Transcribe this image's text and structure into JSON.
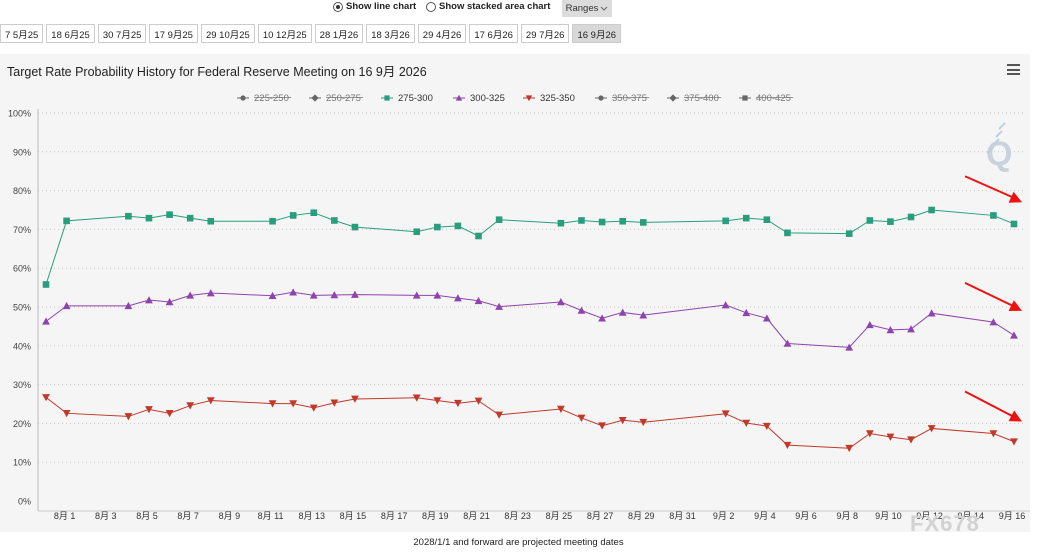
{
  "options": {
    "line_label": "Show line chart",
    "stacked_label": "Show stacked area chart",
    "ranges_label": "Ranges"
  },
  "tabs": [
    "7 5月25",
    "18 6月25",
    "30 7月25",
    "17 9月25",
    "29 10月25",
    "10 12月25",
    "28 1月26",
    "18 3月26",
    "29 4月26",
    "17 6月26",
    "29 7月26",
    "16 9月26"
  ],
  "active_tab": 11,
  "footer_note": "2028/1/1 and forward are projected meeting dates",
  "watermark": "FX678",
  "logo": "Q",
  "colors": {
    "s275": "#2a9d7d",
    "s300": "#8e44ad",
    "s325": "#c0392b",
    "hidden": "#666666",
    "arrow": "#ee1111"
  },
  "chart_data": {
    "type": "line",
    "title": "Target Rate Probability History for Federal Reserve Meeting on 16 9月 2026",
    "xlabel": "",
    "ylabel": "",
    "ylim": [
      0,
      100
    ],
    "xlim": [
      0,
      47
    ],
    "y_ticks": [
      "0%",
      "10%",
      "20%",
      "30%",
      "40%",
      "50%",
      "60%",
      "70%",
      "80%",
      "90%",
      "100%"
    ],
    "x_ticks": [
      {
        "day": 1,
        "label": "8月 1"
      },
      {
        "day": 3,
        "label": "8月 3"
      },
      {
        "day": 5,
        "label": "8月 5"
      },
      {
        "day": 7,
        "label": "8月 7"
      },
      {
        "day": 9,
        "label": "8月 9"
      },
      {
        "day": 11,
        "label": "8月 11"
      },
      {
        "day": 13,
        "label": "8月 13"
      },
      {
        "day": 15,
        "label": "8月 15"
      },
      {
        "day": 17,
        "label": "8月 17"
      },
      {
        "day": 19,
        "label": "8月 19"
      },
      {
        "day": 21,
        "label": "8月 21"
      },
      {
        "day": 23,
        "label": "8月 23"
      },
      {
        "day": 25,
        "label": "8月 25"
      },
      {
        "day": 27,
        "label": "8月 27"
      },
      {
        "day": 29,
        "label": "8月 29"
      },
      {
        "day": 31,
        "label": "8月 31"
      },
      {
        "day": 33,
        "label": "9月 2"
      },
      {
        "day": 35,
        "label": "9月 4"
      },
      {
        "day": 37,
        "label": "9月 6"
      },
      {
        "day": 39,
        "label": "9月 8"
      },
      {
        "day": 41,
        "label": "9月 10"
      },
      {
        "day": 43,
        "label": "9月 12"
      },
      {
        "day": 45,
        "label": "9月 14"
      },
      {
        "day": 47,
        "label": "9月 16"
      }
    ],
    "x": [
      0,
      1,
      4,
      5,
      6,
      7,
      8,
      11,
      12,
      13,
      14,
      15,
      18,
      19,
      20,
      21,
      22,
      25,
      26,
      27,
      28,
      29,
      33,
      34,
      35,
      36,
      39,
      40,
      41,
      42,
      43,
      46,
      47
    ],
    "legend": [
      {
        "name": "225-250",
        "marker": "circle",
        "visible": false
      },
      {
        "name": "250-275",
        "marker": "diamond",
        "visible": false
      },
      {
        "name": "275-300",
        "marker": "square",
        "visible": true
      },
      {
        "name": "300-325",
        "marker": "triangle",
        "visible": true
      },
      {
        "name": "325-350",
        "marker": "triangle-down",
        "visible": true
      },
      {
        "name": "350-375",
        "marker": "circle",
        "visible": false
      },
      {
        "name": "375-400",
        "marker": "diamond",
        "visible": false
      },
      {
        "name": "400-425",
        "marker": "square",
        "visible": false
      }
    ],
    "series": [
      {
        "name": "275-300",
        "marker": "square",
        "color": "#2a9d7d",
        "values": [
          55.8,
          72.2,
          73.4,
          72.9,
          73.8,
          72.9,
          72.1,
          72.1,
          73.6,
          74.3,
          72.3,
          70.6,
          69.4,
          70.6,
          70.9,
          68.3,
          72.5,
          71.6,
          72.3,
          71.9,
          72.1,
          71.8,
          72.2,
          72.9,
          72.5,
          69.1,
          68.9,
          72.3,
          72.0,
          73.2,
          75.0,
          73.6,
          71.4
        ]
      },
      {
        "name": "300-325",
        "marker": "triangle",
        "color": "#8e44ad",
        "values": [
          46.3,
          50.3,
          50.3,
          51.8,
          51.3,
          53.0,
          53.6,
          52.9,
          53.8,
          53.0,
          53.1,
          53.2,
          53.0,
          53.0,
          52.3,
          51.6,
          50.1,
          51.3,
          49.1,
          47.1,
          48.6,
          47.9,
          50.5,
          48.5,
          47.1,
          40.6,
          39.6,
          45.4,
          44.1,
          44.3,
          48.4,
          46.1,
          42.7
        ]
      },
      {
        "name": "325-350",
        "marker": "triangle-down",
        "color": "#c0392b",
        "values": [
          26.7,
          22.6,
          21.8,
          23.6,
          22.6,
          24.6,
          25.9,
          25.1,
          25.1,
          24.0,
          25.3,
          26.3,
          26.6,
          25.9,
          25.2,
          25.8,
          22.2,
          23.7,
          21.4,
          19.4,
          20.8,
          20.3,
          22.5,
          20.1,
          19.3,
          14.4,
          13.6,
          17.4,
          16.5,
          15.8,
          18.7,
          17.4,
          15.3
        ]
      }
    ]
  }
}
